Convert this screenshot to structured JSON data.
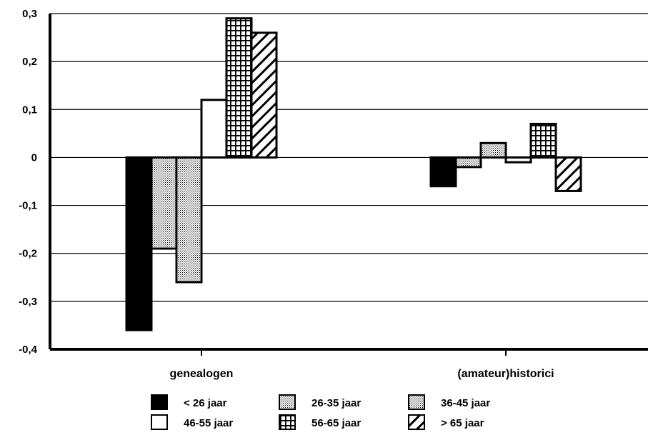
{
  "chart_data": {
    "type": "bar",
    "categories": [
      "genealogen",
      "(amateur)historici"
    ],
    "series": [
      {
        "name": "< 26 jaar",
        "values": [
          -0.36,
          -0.06
        ],
        "pattern": "solid-black"
      },
      {
        "name": "26-35 jaar",
        "values": [
          -0.19,
          -0.02
        ],
        "pattern": "fine-dots"
      },
      {
        "name": "36-45 jaar",
        "values": [
          -0.26,
          0.03
        ],
        "pattern": "fine-dots"
      },
      {
        "name": "46-55 jaar",
        "values": [
          0.12,
          -0.01
        ],
        "pattern": "white"
      },
      {
        "name": "56-65 jaar",
        "values": [
          0.29,
          0.07
        ],
        "pattern": "grid"
      },
      {
        "name": "> 65 jaar",
        "values": [
          0.26,
          -0.07
        ],
        "pattern": "diagonal"
      }
    ],
    "yticks": [
      "0,3",
      "0,2",
      "0,1",
      "0",
      "-0,1",
      "-0,2",
      "-0,3",
      "-0,4"
    ],
    "ylim": [
      -0.4,
      0.3
    ],
    "grid": true,
    "legend_position": "bottom"
  }
}
